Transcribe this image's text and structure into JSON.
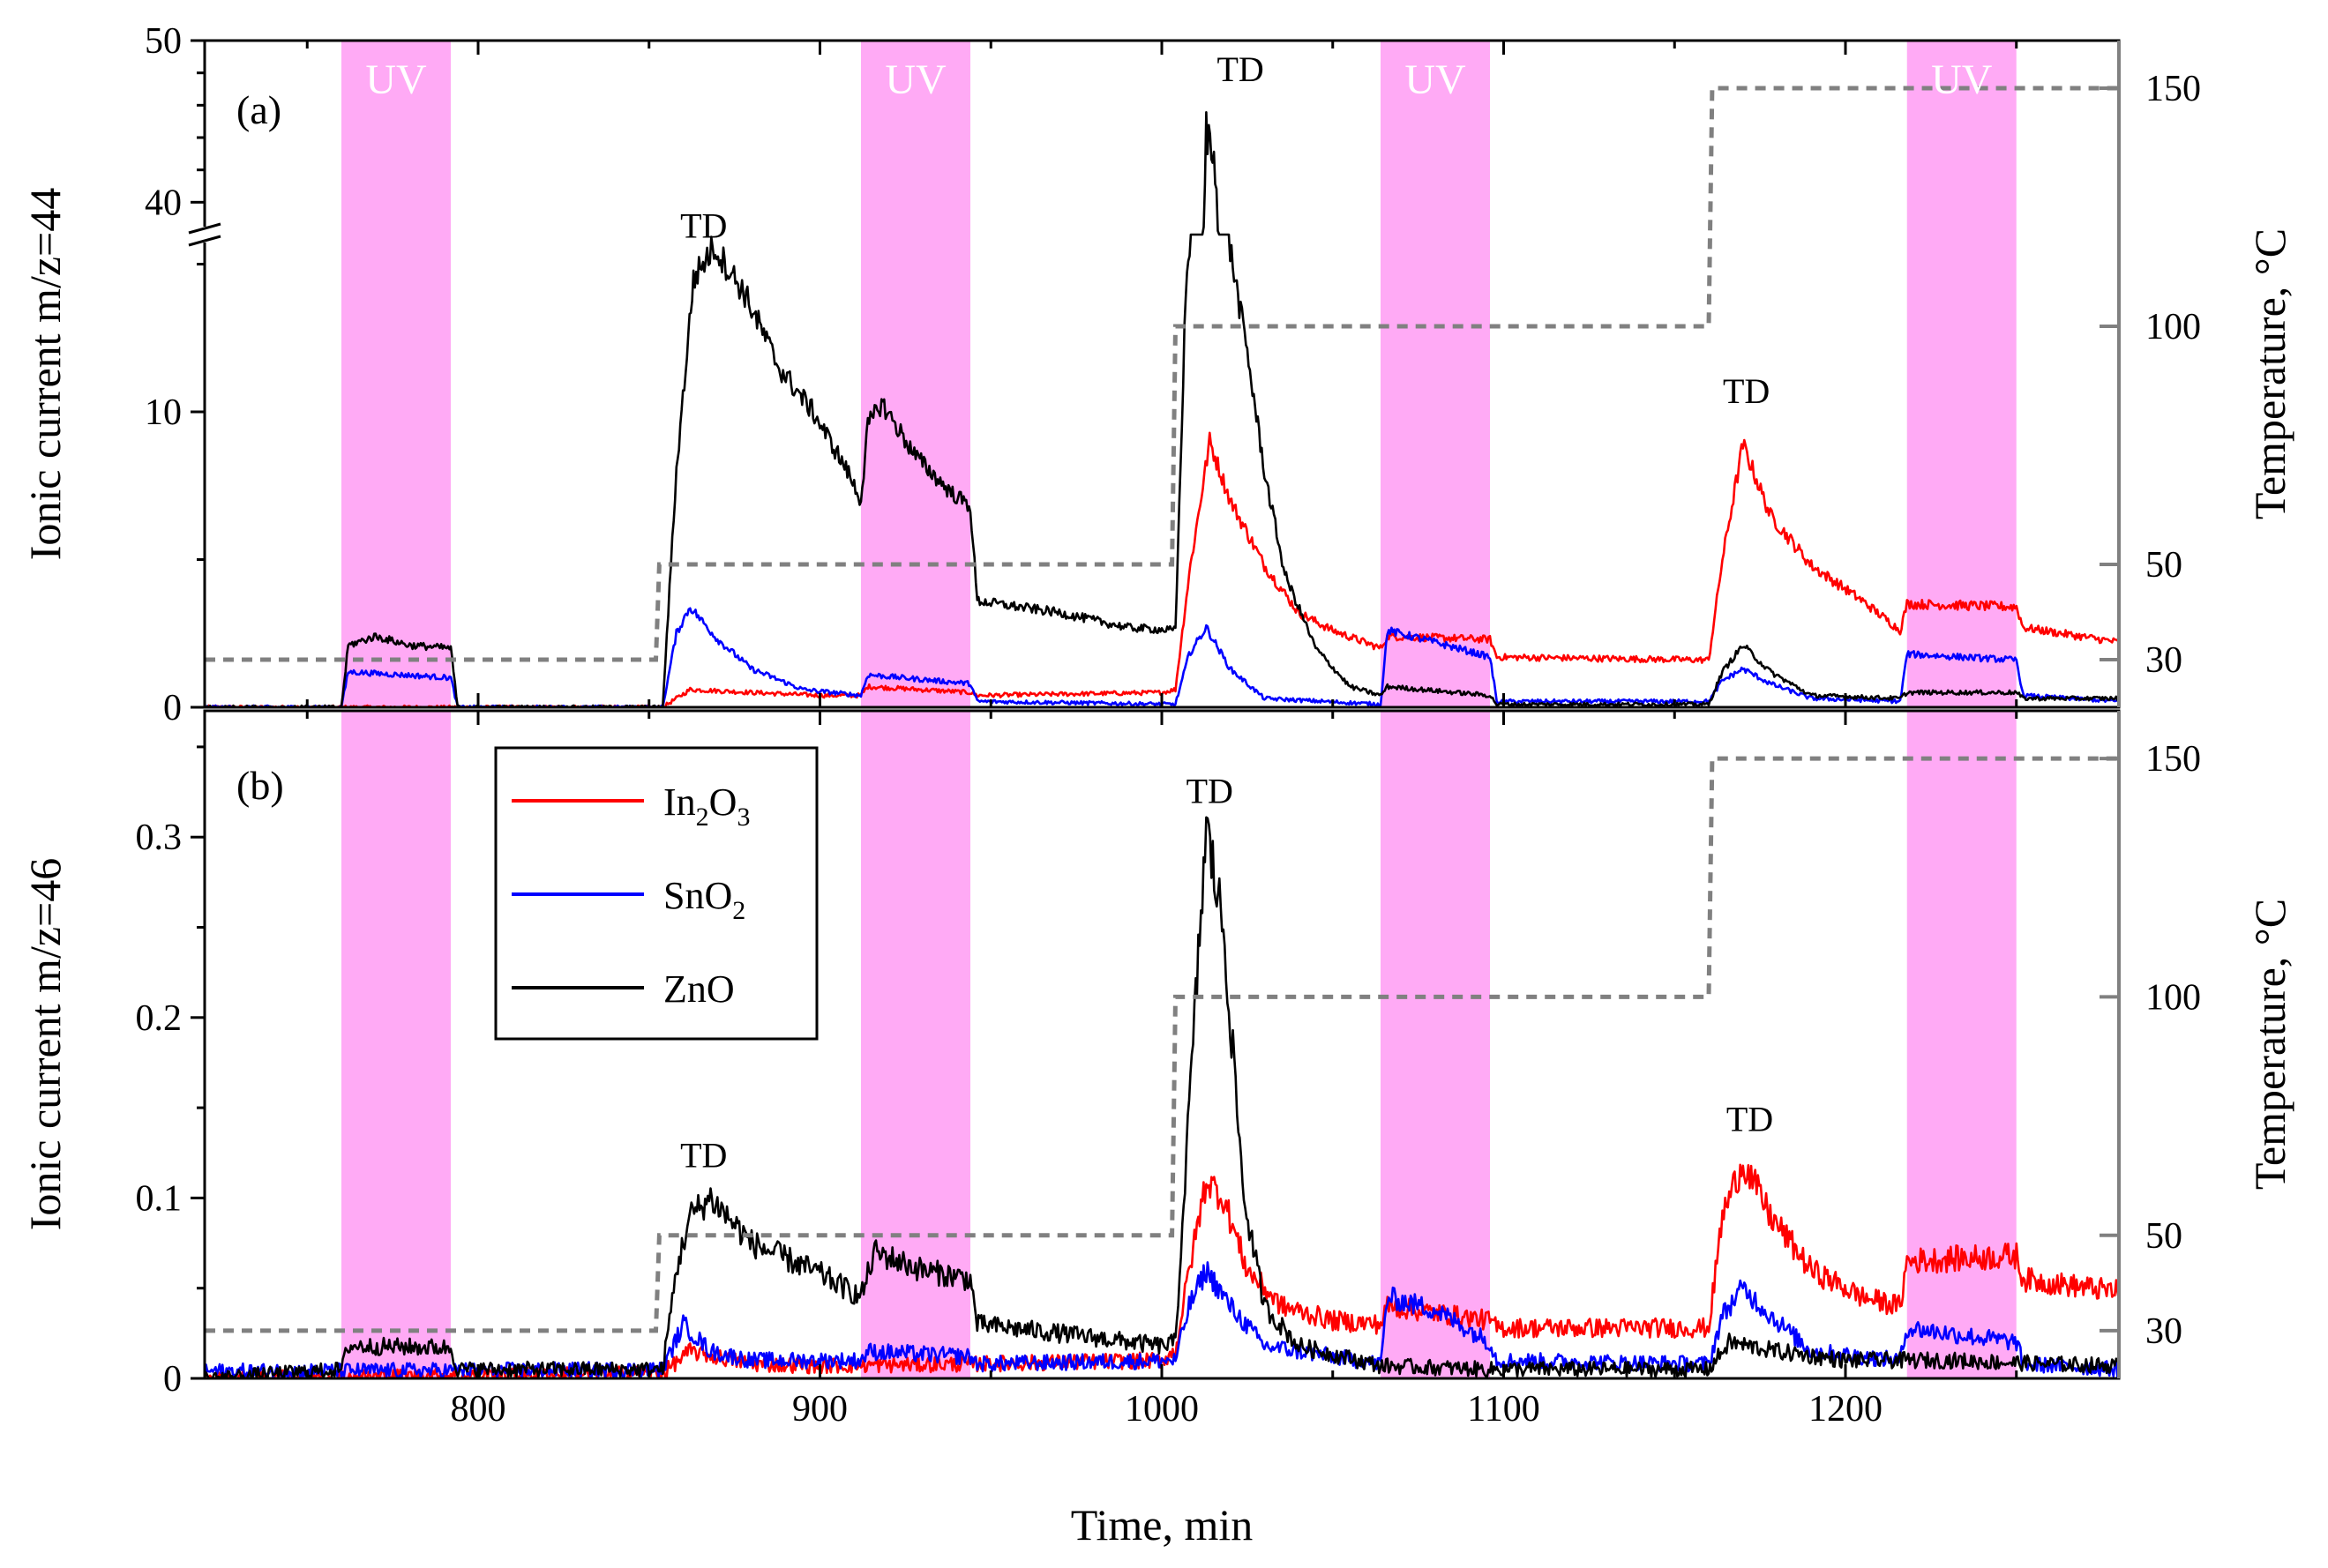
{
  "colors": {
    "In2O3": "#ff0000",
    "SnO2": "#0000ff",
    "ZnO": "#000000",
    "temperature": "#808080",
    "uv_band": "#ffaaf5"
  },
  "chart_data": [
    {
      "panel": "(a)",
      "type": "line",
      "xlabel": "Time, min",
      "ylabel": "Ionic current m/z=44",
      "y2label": "Temperature, °C",
      "xlim": [
        720,
        1280
      ],
      "ylim_lower": [
        0,
        16
      ],
      "ylim_upper": [
        38,
        50
      ],
      "axis_break_at": 40,
      "yticks_lower": [
        "0",
        "10"
      ],
      "yticks_upper": [
        "40",
        "50"
      ],
      "y2lim": [
        20,
        160
      ],
      "y2ticks": [
        "30",
        "50",
        "100",
        "150"
      ],
      "uv_label": "UV",
      "uv_intervals": [
        [
          760,
          792
        ],
        [
          912,
          944
        ],
        [
          1064,
          1096
        ],
        [
          1218,
          1250
        ]
      ],
      "td_labels": [
        {
          "text": "TD",
          "x": 866,
          "y": 15.9
        },
        {
          "text": "TD",
          "x": 1023,
          "y": 47.5
        },
        {
          "text": "TD",
          "x": 1171,
          "y": 10.3
        }
      ],
      "series": [
        {
          "name": "In2O3",
          "color_key": "In2O3",
          "points": [
            [
              720,
              0
            ],
            [
              854,
              0
            ],
            [
              862,
              0.6
            ],
            [
              880,
              0.5
            ],
            [
              900,
              0.4
            ],
            [
              912,
              0.4
            ],
            [
              914,
              0.7
            ],
            [
              944,
              0.5
            ],
            [
              946,
              0.4
            ],
            [
              1000,
              0.5
            ],
            [
              1004,
              0.6
            ],
            [
              1008,
              4.5
            ],
            [
              1014,
              9.0
            ],
            [
              1020,
              7.0
            ],
            [
              1030,
              4.8
            ],
            [
              1040,
              3.2
            ],
            [
              1050,
              2.6
            ],
            [
              1064,
              2.0
            ],
            [
              1066,
              2.4
            ],
            [
              1096,
              2.3
            ],
            [
              1098,
              1.7
            ],
            [
              1160,
              1.6
            ],
            [
              1164,
              5.0
            ],
            [
              1170,
              8.9
            ],
            [
              1178,
              6.5
            ],
            [
              1190,
              4.8
            ],
            [
              1205,
              3.6
            ],
            [
              1216,
              2.6
            ],
            [
              1218,
              3.5
            ],
            [
              1250,
              3.4
            ],
            [
              1252,
              2.7
            ],
            [
              1280,
              2.2
            ]
          ]
        },
        {
          "name": "SnO2",
          "color_key": "SnO2",
          "points": [
            [
              720,
              0
            ],
            [
              760,
              0
            ],
            [
              762,
              1.2
            ],
            [
              792,
              1.0
            ],
            [
              794,
              0
            ],
            [
              854,
              0
            ],
            [
              858,
              2.5
            ],
            [
              862,
              3.4
            ],
            [
              870,
              2.3
            ],
            [
              880,
              1.3
            ],
            [
              895,
              0.6
            ],
            [
              912,
              0.4
            ],
            [
              914,
              1.1
            ],
            [
              944,
              0.8
            ],
            [
              946,
              0.2
            ],
            [
              1004,
              0.1
            ],
            [
              1008,
              1.8
            ],
            [
              1013,
              2.7
            ],
            [
              1020,
              1.3
            ],
            [
              1030,
              0.3
            ],
            [
              1064,
              0.1
            ],
            [
              1066,
              2.6
            ],
            [
              1080,
              2.2
            ],
            [
              1096,
              1.7
            ],
            [
              1098,
              0.2
            ],
            [
              1160,
              0.2
            ],
            [
              1164,
              0.9
            ],
            [
              1170,
              1.3
            ],
            [
              1178,
              0.8
            ],
            [
              1190,
              0.3
            ],
            [
              1216,
              0.2
            ],
            [
              1218,
              1.8
            ],
            [
              1250,
              1.6
            ],
            [
              1252,
              0.4
            ],
            [
              1280,
              0.2
            ]
          ]
        },
        {
          "name": "ZnO",
          "color_key": "ZnO",
          "points": [
            [
              720,
              0
            ],
            [
              760,
              0
            ],
            [
              762,
              2.1
            ],
            [
              770,
              2.4
            ],
            [
              780,
              2.1
            ],
            [
              792,
              2.0
            ],
            [
              794,
              0
            ],
            [
              854,
              0
            ],
            [
              858,
              8.0
            ],
            [
              863,
              14.5
            ],
            [
              869,
              15.6
            ],
            [
              878,
              14.0
            ],
            [
              888,
              11.5
            ],
            [
              898,
              10.0
            ],
            [
              908,
              8.0
            ],
            [
              912,
              7.0
            ],
            [
              914,
              9.5
            ],
            [
              918,
              10.3
            ],
            [
              928,
              8.5
            ],
            [
              938,
              7.3
            ],
            [
              944,
              6.8
            ],
            [
              946,
              3.6
            ],
            [
              970,
              3.2
            ],
            [
              990,
              2.7
            ],
            [
              1004,
              2.6
            ],
            [
              1007,
              14.0
            ],
            [
              1010,
              18.5
            ],
            [
              1013,
              44.5
            ],
            [
              1016,
              42.0
            ],
            [
              1020,
              15.5
            ],
            [
              1025,
              12.0
            ],
            [
              1030,
              8.0
            ],
            [
              1036,
              4.5
            ],
            [
              1045,
              2.0
            ],
            [
              1055,
              0.7
            ],
            [
              1064,
              0.4
            ],
            [
              1066,
              0.7
            ],
            [
              1096,
              0.4
            ],
            [
              1098,
              0.1
            ],
            [
              1160,
              0.1
            ],
            [
              1164,
              1.2
            ],
            [
              1170,
              2.1
            ],
            [
              1178,
              1.2
            ],
            [
              1190,
              0.4
            ],
            [
              1216,
              0.3
            ],
            [
              1218,
              0.5
            ],
            [
              1250,
              0.5
            ],
            [
              1252,
              0.3
            ],
            [
              1280,
              0.3
            ]
          ]
        },
        {
          "name": "Temperature",
          "color_key": "temperature",
          "axis": "right",
          "points": [
            [
              720,
              30
            ],
            [
              852,
              30
            ],
            [
              853,
              50
            ],
            [
              1003,
              50
            ],
            [
              1004,
              100
            ],
            [
              1160,
              100
            ],
            [
              1161,
              150
            ],
            [
              1280,
              150
            ]
          ]
        }
      ]
    },
    {
      "panel": "(b)",
      "type": "line",
      "xlabel": "Time, min",
      "ylabel": "Ionic current m/z=46",
      "y2label": "Temperature, °C",
      "xlim": [
        720,
        1280
      ],
      "xticks": [
        "800",
        "900",
        "1000",
        "1100",
        "1200"
      ],
      "ylim": [
        0,
        0.37
      ],
      "yticks": [
        "0",
        "0.1",
        "0.2",
        "0.3"
      ],
      "y2lim": [
        20,
        160
      ],
      "y2ticks": [
        "30",
        "50",
        "100",
        "150"
      ],
      "uv_label": "UV",
      "uv_intervals": [
        [
          760,
          792
        ],
        [
          912,
          944
        ],
        [
          1064,
          1096
        ],
        [
          1218,
          1250
        ]
      ],
      "td_labels": [
        {
          "text": "TD",
          "x": 866,
          "y": 0.117
        },
        {
          "text": "TD",
          "x": 1014,
          "y": 0.319
        },
        {
          "text": "TD",
          "x": 1172,
          "y": 0.137
        }
      ],
      "legend": {
        "position": "top-left",
        "entries": [
          {
            "key": "In2O3",
            "base": "In",
            "sub1": "2",
            "mid": "O",
            "sub2": "3"
          },
          {
            "key": "SnO2",
            "base": "SnO",
            "sub1": "2",
            "mid": "",
            "sub2": ""
          },
          {
            "key": "ZnO",
            "base": "ZnO",
            "sub1": "",
            "mid": "",
            "sub2": ""
          }
        ]
      },
      "series": [
        {
          "name": "In2O3",
          "color_key": "In2O3",
          "points": [
            [
              720,
              0
            ],
            [
              854,
              0.003
            ],
            [
              862,
              0.015
            ],
            [
              880,
              0.008
            ],
            [
              900,
              0.007
            ],
            [
              944,
              0.008
            ],
            [
              1000,
              0.01
            ],
            [
              1004,
              0.015
            ],
            [
              1008,
              0.06
            ],
            [
              1013,
              0.11
            ],
            [
              1018,
              0.1
            ],
            [
              1025,
              0.06
            ],
            [
              1035,
              0.04
            ],
            [
              1050,
              0.032
            ],
            [
              1064,
              0.03
            ],
            [
              1066,
              0.04
            ],
            [
              1096,
              0.032
            ],
            [
              1098,
              0.028
            ],
            [
              1160,
              0.028
            ],
            [
              1164,
              0.09
            ],
            [
              1170,
              0.12
            ],
            [
              1178,
              0.09
            ],
            [
              1190,
              0.06
            ],
            [
              1205,
              0.045
            ],
            [
              1216,
              0.04
            ],
            [
              1218,
              0.065
            ],
            [
              1250,
              0.068
            ],
            [
              1252,
              0.055
            ],
            [
              1280,
              0.048
            ]
          ]
        },
        {
          "name": "SnO2",
          "color_key": "SnO2",
          "points": [
            [
              720,
              0.004
            ],
            [
              854,
              0.005
            ],
            [
              860,
              0.03
            ],
            [
              868,
              0.015
            ],
            [
              880,
              0.01
            ],
            [
              912,
              0.01
            ],
            [
              914,
              0.015
            ],
            [
              944,
              0.012
            ],
            [
              946,
              0.008
            ],
            [
              1004,
              0.01
            ],
            [
              1008,
              0.04
            ],
            [
              1013,
              0.06
            ],
            [
              1020,
              0.04
            ],
            [
              1030,
              0.018
            ],
            [
              1064,
              0.008
            ],
            [
              1066,
              0.045
            ],
            [
              1080,
              0.038
            ],
            [
              1096,
              0.02
            ],
            [
              1098,
              0.01
            ],
            [
              1160,
              0.008
            ],
            [
              1164,
              0.035
            ],
            [
              1170,
              0.05
            ],
            [
              1178,
              0.035
            ],
            [
              1190,
              0.015
            ],
            [
              1216,
              0.01
            ],
            [
              1218,
              0.028
            ],
            [
              1250,
              0.02
            ],
            [
              1252,
              0.008
            ],
            [
              1280,
              0.005
            ]
          ]
        },
        {
          "name": "ZnO",
          "color_key": "ZnO",
          "points": [
            [
              720,
              0
            ],
            [
              760,
              0.005
            ],
            [
              762,
              0.018
            ],
            [
              792,
              0.017
            ],
            [
              794,
              0.005
            ],
            [
              854,
              0.005
            ],
            [
              858,
              0.06
            ],
            [
              862,
              0.09
            ],
            [
              868,
              0.1
            ],
            [
              880,
              0.075
            ],
            [
              900,
              0.058
            ],
            [
              912,
              0.045
            ],
            [
              916,
              0.07
            ],
            [
              930,
              0.06
            ],
            [
              944,
              0.055
            ],
            [
              946,
              0.03
            ],
            [
              970,
              0.025
            ],
            [
              1000,
              0.018
            ],
            [
              1004,
              0.02
            ],
            [
              1008,
              0.15
            ],
            [
              1013,
              0.305
            ],
            [
              1018,
              0.25
            ],
            [
              1024,
              0.1
            ],
            [
              1030,
              0.04
            ],
            [
              1040,
              0.018
            ],
            [
              1064,
              0.007
            ],
            [
              1096,
              0.005
            ],
            [
              1160,
              0.005
            ],
            [
              1166,
              0.02
            ],
            [
              1180,
              0.015
            ],
            [
              1200,
              0.01
            ],
            [
              1230,
              0.01
            ],
            [
              1260,
              0.008
            ],
            [
              1280,
              0.007
            ]
          ]
        },
        {
          "name": "Temperature",
          "color_key": "temperature",
          "axis": "right",
          "points": [
            [
              720,
              30
            ],
            [
              852,
              30
            ],
            [
              853,
              50
            ],
            [
              1003,
              50
            ],
            [
              1004,
              100
            ],
            [
              1160,
              100
            ],
            [
              1161,
              150
            ],
            [
              1280,
              150
            ]
          ]
        }
      ]
    }
  ]
}
